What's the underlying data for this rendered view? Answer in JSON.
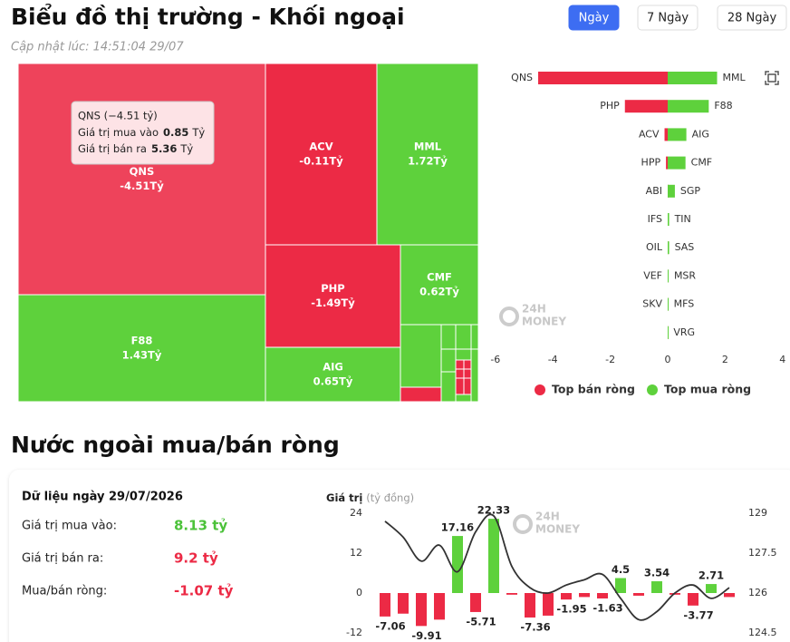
{
  "header": {
    "title": "Biểu đồ thị trường - Khối ngoại",
    "updated": "Cập nhật lúc: 14:51:04 29/07"
  },
  "tabs": [
    {
      "label": "Ngày",
      "active": true
    },
    {
      "label": "7 Ngày"
    },
    {
      "label": "28 Ngày"
    }
  ],
  "watermark": [
    "24H",
    "MONEY"
  ],
  "chart_data": [
    {
      "type": "treemap",
      "colors": {
        "negative": "#ec2a45",
        "positive": "#5ed13c"
      },
      "categories": [
        "QNS",
        "F88",
        "ACV",
        "MML",
        "PHP",
        "AIG",
        "CMF"
      ],
      "values": [
        -4.51,
        1.43,
        -0.11,
        1.72,
        -1.49,
        0.65,
        0.62
      ],
      "value_labels": [
        "-4.51Tỷ",
        "1.43Tỷ",
        "-0.11Tỷ",
        "1.72Tỷ",
        "-1.49Tỷ",
        "0.65Tỷ",
        "0.62Tỷ"
      ],
      "tooltip": {
        "title": "QNS (−4.51 tỷ)",
        "lines": [
          {
            "label": "Giá trị mua vào",
            "value": 0.85,
            "unit": "Tỷ"
          },
          {
            "label": "Giá trị bán ra",
            "value": 5.36,
            "unit": "Tỷ"
          }
        ]
      }
    },
    {
      "type": "diverging_bar",
      "xlim": [
        -6,
        4
      ],
      "xticks": [
        -6,
        -4,
        -2,
        0,
        2,
        4
      ],
      "legend": "bottom",
      "series": [
        {
          "name": "Top bán ròng",
          "color": "#ec2a45",
          "labels": [
            "QNS",
            "PHP",
            "ACV",
            "HPP",
            "ABI",
            "IFS",
            "OIL",
            "VEF",
            "SKV",
            null
          ],
          "values": [
            -4.51,
            -1.49,
            -0.11,
            -0.06,
            0,
            0,
            0,
            0,
            0,
            0
          ]
        },
        {
          "name": "Top mua ròng",
          "color": "#5ed13c",
          "labels": [
            "MML",
            "F88",
            "AIG",
            "CMF",
            "SGP",
            "TIN",
            "SAS",
            "MSR",
            "MFS",
            "VRG"
          ],
          "values": [
            1.72,
            1.43,
            0.65,
            0.62,
            0.25,
            0.05,
            0.05,
            0.03,
            0.02,
            0.01
          ]
        }
      ]
    },
    {
      "type": "bar_line",
      "ylabel": "Giá trị",
      "ylabel_unit": "(tỷ đồng)",
      "categories": [
        null,
        null,
        null,
        null,
        null,
        null,
        null,
        null,
        null,
        null,
        null,
        null,
        null,
        null,
        null,
        null,
        null,
        null,
        null,
        null
      ],
      "ylim": [
        -12,
        24
      ],
      "yticks": [
        -12,
        0,
        12,
        24
      ],
      "y2lim": [
        124.5,
        129
      ],
      "y2ticks": [
        124.5,
        126,
        127.5,
        129
      ],
      "series": [
        {
          "type": "bar",
          "colors": {
            "positive": "#5ed13c",
            "negative": "#ec2a45"
          },
          "values": [
            -7.06,
            -6.2,
            -9.91,
            -8.0,
            17.16,
            -5.71,
            22.33,
            -0.5,
            -7.36,
            -6.8,
            -1.95,
            -1.2,
            -1.63,
            4.5,
            -0.8,
            3.54,
            -0.5,
            -3.77,
            2.71,
            -1.2
          ],
          "value_labels": [
            "-7.06",
            null,
            "-9.91",
            null,
            "17.16",
            "-5.71",
            "22.33",
            null,
            "-7.36",
            null,
            "-1.95",
            null,
            "-1.63",
            "4.5",
            null,
            "3.54",
            null,
            "-3.77",
            "2.71",
            null
          ]
        },
        {
          "type": "line",
          "axis": "y2",
          "color": "#333333",
          "values": [
            128.7,
            128.1,
            127.2,
            127.8,
            126.8,
            128.3,
            128.9,
            127.0,
            126.2,
            126.0,
            126.3,
            126.5,
            126.7,
            125.8,
            125.0,
            125.3,
            126.0,
            126.3,
            125.8,
            126.2
          ]
        }
      ]
    }
  ],
  "section_title": "Nước ngoài mua/bán ròng",
  "summary": {
    "title": "Dữ liệu ngày 29/07/2026",
    "rows": [
      {
        "label": "Giá trị mua vào:",
        "value": "8.13 tỷ",
        "color": "#4cc23a"
      },
      {
        "label": "Giá trị bán ra:",
        "value": "9.2 tỷ",
        "color": "#ec2a45"
      },
      {
        "label": "Mua/bán ròng:",
        "value": "-1.07 tỷ",
        "color": "#ec2a45"
      }
    ]
  }
}
